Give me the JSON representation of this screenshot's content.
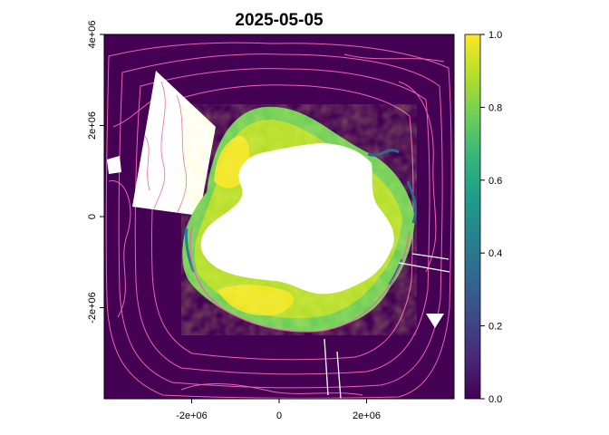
{
  "title": "2025-05-05",
  "map": {
    "projection_units": "m",
    "x_ticks": [
      {
        "value": -2000000,
        "label": "-2e+06"
      },
      {
        "value": 0,
        "label": "0"
      },
      {
        "value": 2000000,
        "label": "2e+06"
      }
    ],
    "y_ticks": [
      {
        "value": 4000000,
        "label": "4e+06"
      },
      {
        "value": 2000000,
        "label": "2e+06"
      },
      {
        "value": 0,
        "label": "0"
      },
      {
        "value": -2000000,
        "label": "-2e+06"
      }
    ],
    "xlim": [
      -4000000,
      4000000
    ],
    "ylim": [
      -4000000,
      4000000
    ],
    "colors": {
      "ocean": "#440154",
      "land": "#ffffff",
      "contour": "#f062b0",
      "missing_data": "#ffffff"
    }
  },
  "colorbar": {
    "min": 0.0,
    "max": 1.0,
    "ticks": [
      {
        "value": 0.0,
        "label": "0.0"
      },
      {
        "value": 0.2,
        "label": "0.2"
      },
      {
        "value": 0.4,
        "label": "0.4"
      },
      {
        "value": 0.6,
        "label": "0.6"
      },
      {
        "value": 0.8,
        "label": "0.8"
      },
      {
        "value": 1.0,
        "label": "1.0"
      }
    ],
    "palette": [
      "#440154",
      "#482878",
      "#3e4989",
      "#31688e",
      "#26828e",
      "#1f9e89",
      "#35b779",
      "#6ece58",
      "#b5de2b",
      "#fde725"
    ]
  }
}
